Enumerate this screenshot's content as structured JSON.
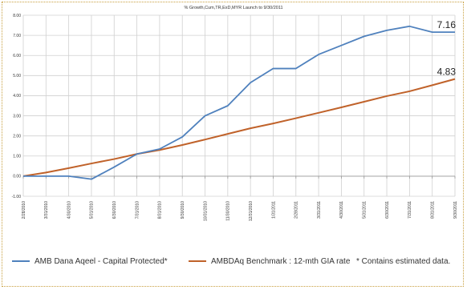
{
  "chart_data": {
    "type": "line",
    "title": "% Growth,Cum,TR,ExD,MYR Launch to 9/30/2011",
    "xlabel": "",
    "ylabel": "",
    "ylim": [
      -1.0,
      8.0
    ],
    "yticks": [
      "-1.00",
      "0.00",
      "1.00",
      "2.00",
      "3.00",
      "4.00",
      "5.00",
      "6.00",
      "7.00",
      "8.00"
    ],
    "x": [
      "2/28/2010",
      "3/31/2010",
      "4/30/2010",
      "5/31/2010",
      "6/30/2010",
      "7/31/2010",
      "8/31/2010",
      "9/30/2010",
      "10/31/2010",
      "11/30/2010",
      "12/31/2010",
      "1/31/2011",
      "2/28/2011",
      "3/31/2011",
      "4/30/2011",
      "5/31/2011",
      "6/30/2011",
      "7/31/2011",
      "8/31/2011",
      "9/30/2011"
    ],
    "series": [
      {
        "name": "AMB Dana Aqeel - Capital Protected*",
        "color": "#4f81bd",
        "values": [
          0.0,
          0.0,
          0.0,
          -0.15,
          0.45,
          1.1,
          1.35,
          1.95,
          3.0,
          3.5,
          4.65,
          5.35,
          5.35,
          6.05,
          6.5,
          6.95,
          7.25,
          7.45,
          7.16,
          7.16
        ],
        "end_label": "7.16"
      },
      {
        "name": "AMBDAq Benchmark : 12-mth GIA rate",
        "color": "#c0622a",
        "values": [
          0.0,
          0.18,
          0.4,
          0.63,
          0.85,
          1.1,
          1.3,
          1.55,
          1.82,
          2.1,
          2.38,
          2.62,
          2.88,
          3.15,
          3.42,
          3.7,
          3.98,
          4.22,
          4.52,
          4.83
        ],
        "end_label": "4.83"
      }
    ],
    "footnote": "* Contains estimated data.",
    "grid": true,
    "legend_position": "bottom"
  }
}
